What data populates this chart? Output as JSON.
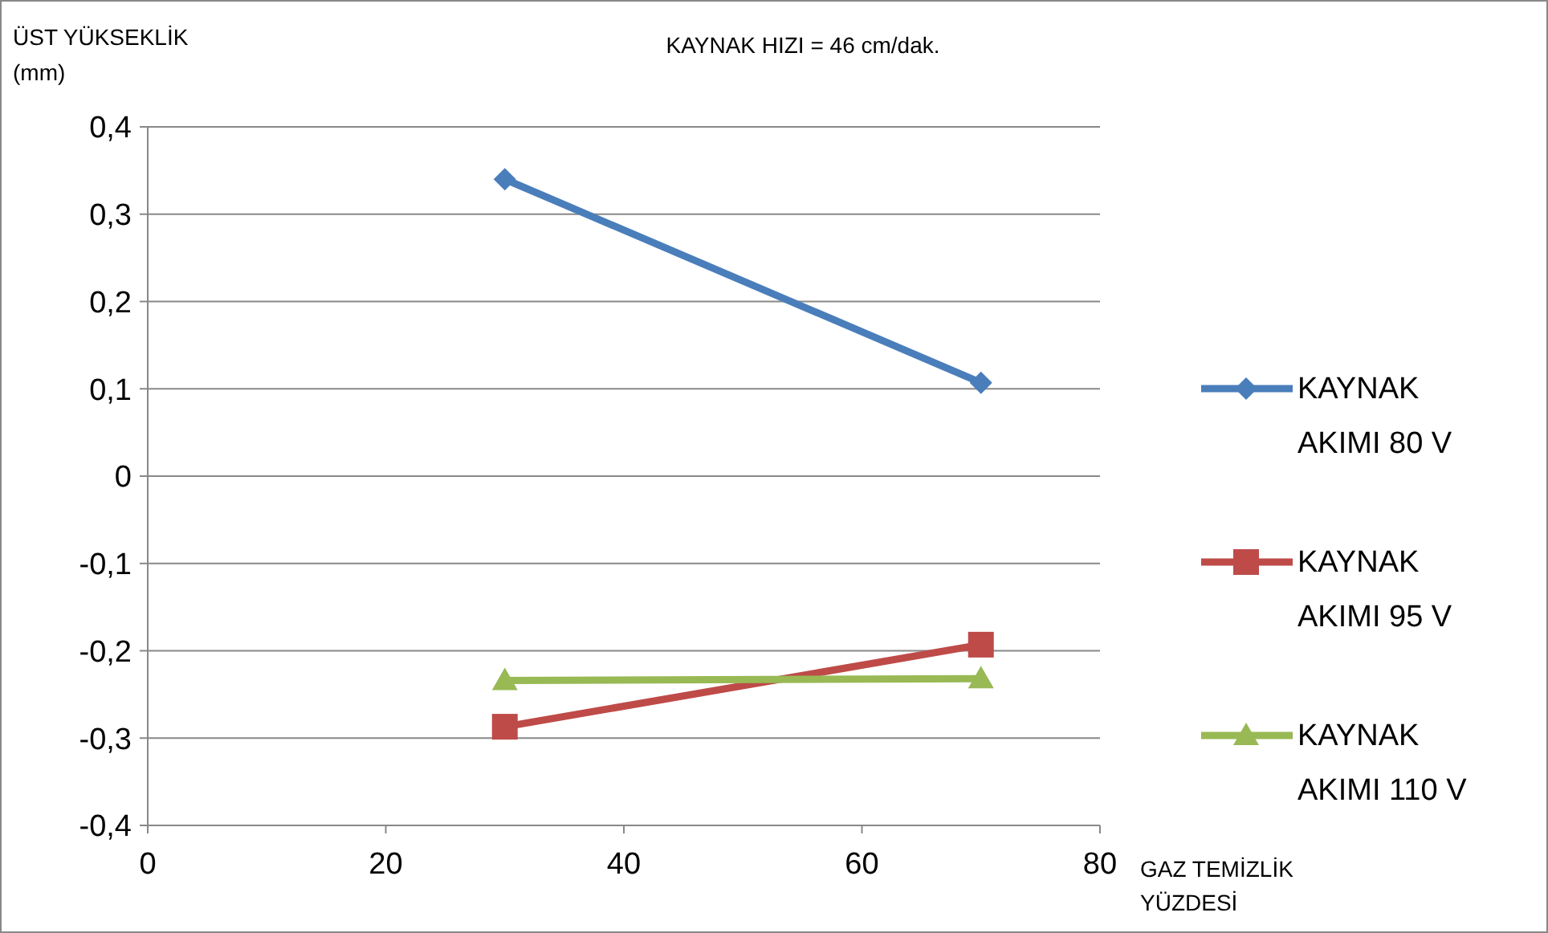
{
  "chart_data": {
    "type": "line",
    "title": "KAYNAK HIZI = 46 cm/dak.",
    "ylabel": "ÜST YÜKSEKLİK (mm)",
    "xlabel": "GAZ TEMİZLİK YÜZDESİ",
    "x": [
      30,
      70
    ],
    "series": [
      {
        "name": "KAYNAK AKIMI 80 V",
        "color": "#4a7ebb",
        "marker": "diamond",
        "values": [
          0.34,
          0.107
        ]
      },
      {
        "name": "KAYNAK AKIMI 95 V",
        "color": "#be4b48",
        "marker": "square",
        "values": [
          -0.287,
          -0.193
        ]
      },
      {
        "name": "KAYNAK AKIMI 110 V",
        "color": "#98b954",
        "marker": "triangle",
        "values": [
          -0.234,
          -0.232
        ]
      }
    ],
    "xlim": [
      0,
      80
    ],
    "xticks": [
      0,
      20,
      40,
      60,
      80
    ],
    "ylim": [
      -0.4,
      0.4
    ],
    "yticks": [
      {
        "value": -0.4,
        "label": "-0,4"
      },
      {
        "value": -0.3,
        "label": "-0,3"
      },
      {
        "value": -0.2,
        "label": "-0,2"
      },
      {
        "value": -0.1,
        "label": "-0,1"
      },
      0,
      {
        "value": 0.1,
        "label": "0,1"
      },
      {
        "value": 0.2,
        "label": "0,2"
      },
      {
        "value": 0.3,
        "label": "0,3"
      },
      {
        "value": 0.4,
        "label": "0,4"
      }
    ],
    "grid": "y",
    "legend": "right",
    "line_style": "solid"
  }
}
